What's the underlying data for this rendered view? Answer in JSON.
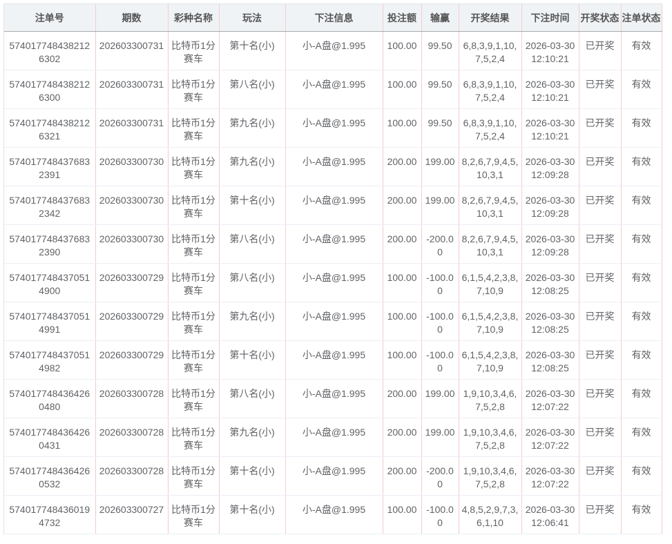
{
  "headers": [
    "注单号",
    "期数",
    "彩种名称",
    "玩法",
    "下注信息",
    "投注额",
    "输赢",
    "开奖结果",
    "下注时间",
    "开奖状态",
    "注单状态"
  ],
  "rows": [
    [
      "5740177484382126302",
      "202603300731",
      "比特币1分赛车",
      "第十名(小)",
      "小-A盘@1.995",
      "100.00",
      "99.50",
      "6,8,3,9,1,10,7,5,2,4",
      "2026-03-30 12:10:21",
      "已开奖",
      "有效"
    ],
    [
      "5740177484382126300",
      "202603300731",
      "比特币1分赛车",
      "第八名(小)",
      "小-A盘@1.995",
      "100.00",
      "99.50",
      "6,8,3,9,1,10,7,5,2,4",
      "2026-03-30 12:10:21",
      "已开奖",
      "有效"
    ],
    [
      "5740177484382126321",
      "202603300731",
      "比特币1分赛车",
      "第九名(小)",
      "小-A盘@1.995",
      "100.00",
      "99.50",
      "6,8,3,9,1,10,7,5,2,4",
      "2026-03-30 12:10:21",
      "已开奖",
      "有效"
    ],
    [
      "5740177484376832391",
      "202603300730",
      "比特币1分赛车",
      "第九名(小)",
      "小-A盘@1.995",
      "200.00",
      "199.00",
      "8,2,6,7,9,4,5,10,3,1",
      "2026-03-30 12:09:28",
      "已开奖",
      "有效"
    ],
    [
      "5740177484376832342",
      "202603300730",
      "比特币1分赛车",
      "第十名(小)",
      "小-A盘@1.995",
      "200.00",
      "199.00",
      "8,2,6,7,9,4,5,10,3,1",
      "2026-03-30 12:09:28",
      "已开奖",
      "有效"
    ],
    [
      "5740177484376832390",
      "202603300730",
      "比特币1分赛车",
      "第八名(小)",
      "小-A盘@1.995",
      "200.00",
      "-200.00",
      "8,2,6,7,9,4,5,10,3,1",
      "2026-03-30 12:09:28",
      "已开奖",
      "有效"
    ],
    [
      "5740177484370514900",
      "202603300729",
      "比特币1分赛车",
      "第八名(小)",
      "小-A盘@1.995",
      "100.00",
      "-100.00",
      "6,1,5,4,2,3,8,7,10,9",
      "2026-03-30 12:08:25",
      "已开奖",
      "有效"
    ],
    [
      "5740177484370514991",
      "202603300729",
      "比特币1分赛车",
      "第九名(小)",
      "小-A盘@1.995",
      "100.00",
      "-100.00",
      "6,1,5,4,2,3,8,7,10,9",
      "2026-03-30 12:08:25",
      "已开奖",
      "有效"
    ],
    [
      "5740177484370514982",
      "202603300729",
      "比特币1分赛车",
      "第十名(小)",
      "小-A盘@1.995",
      "100.00",
      "-100.00",
      "6,1,5,4,2,3,8,7,10,9",
      "2026-03-30 12:08:25",
      "已开奖",
      "有效"
    ],
    [
      "5740177484364260480",
      "202603300728",
      "比特币1分赛车",
      "第八名(小)",
      "小-A盘@1.995",
      "200.00",
      "199.00",
      "1,9,10,3,4,6,7,5,2,8",
      "2026-03-30 12:07:22",
      "已开奖",
      "有效"
    ],
    [
      "5740177484364260431",
      "202603300728",
      "比特币1分赛车",
      "第九名(小)",
      "小-A盘@1.995",
      "200.00",
      "199.00",
      "1,9,10,3,4,6,7,5,2,8",
      "2026-03-30 12:07:22",
      "已开奖",
      "有效"
    ],
    [
      "5740177484364260532",
      "202603300728",
      "比特币1分赛车",
      "第十名(小)",
      "小-A盘@1.995",
      "200.00",
      "-200.00",
      "1,9,10,3,4,6,7,5,2,8",
      "2026-03-30 12:07:22",
      "已开奖",
      "有效"
    ],
    [
      "5740177484360194732",
      "202603300727",
      "比特币1分赛车",
      "第十名(小)",
      "小-A盘@1.995",
      "100.00",
      "-100.00",
      "4,8,5,2,9,7,3,6,1,10",
      "2026-03-30 12:06:41",
      "已开奖",
      "有效"
    ]
  ]
}
